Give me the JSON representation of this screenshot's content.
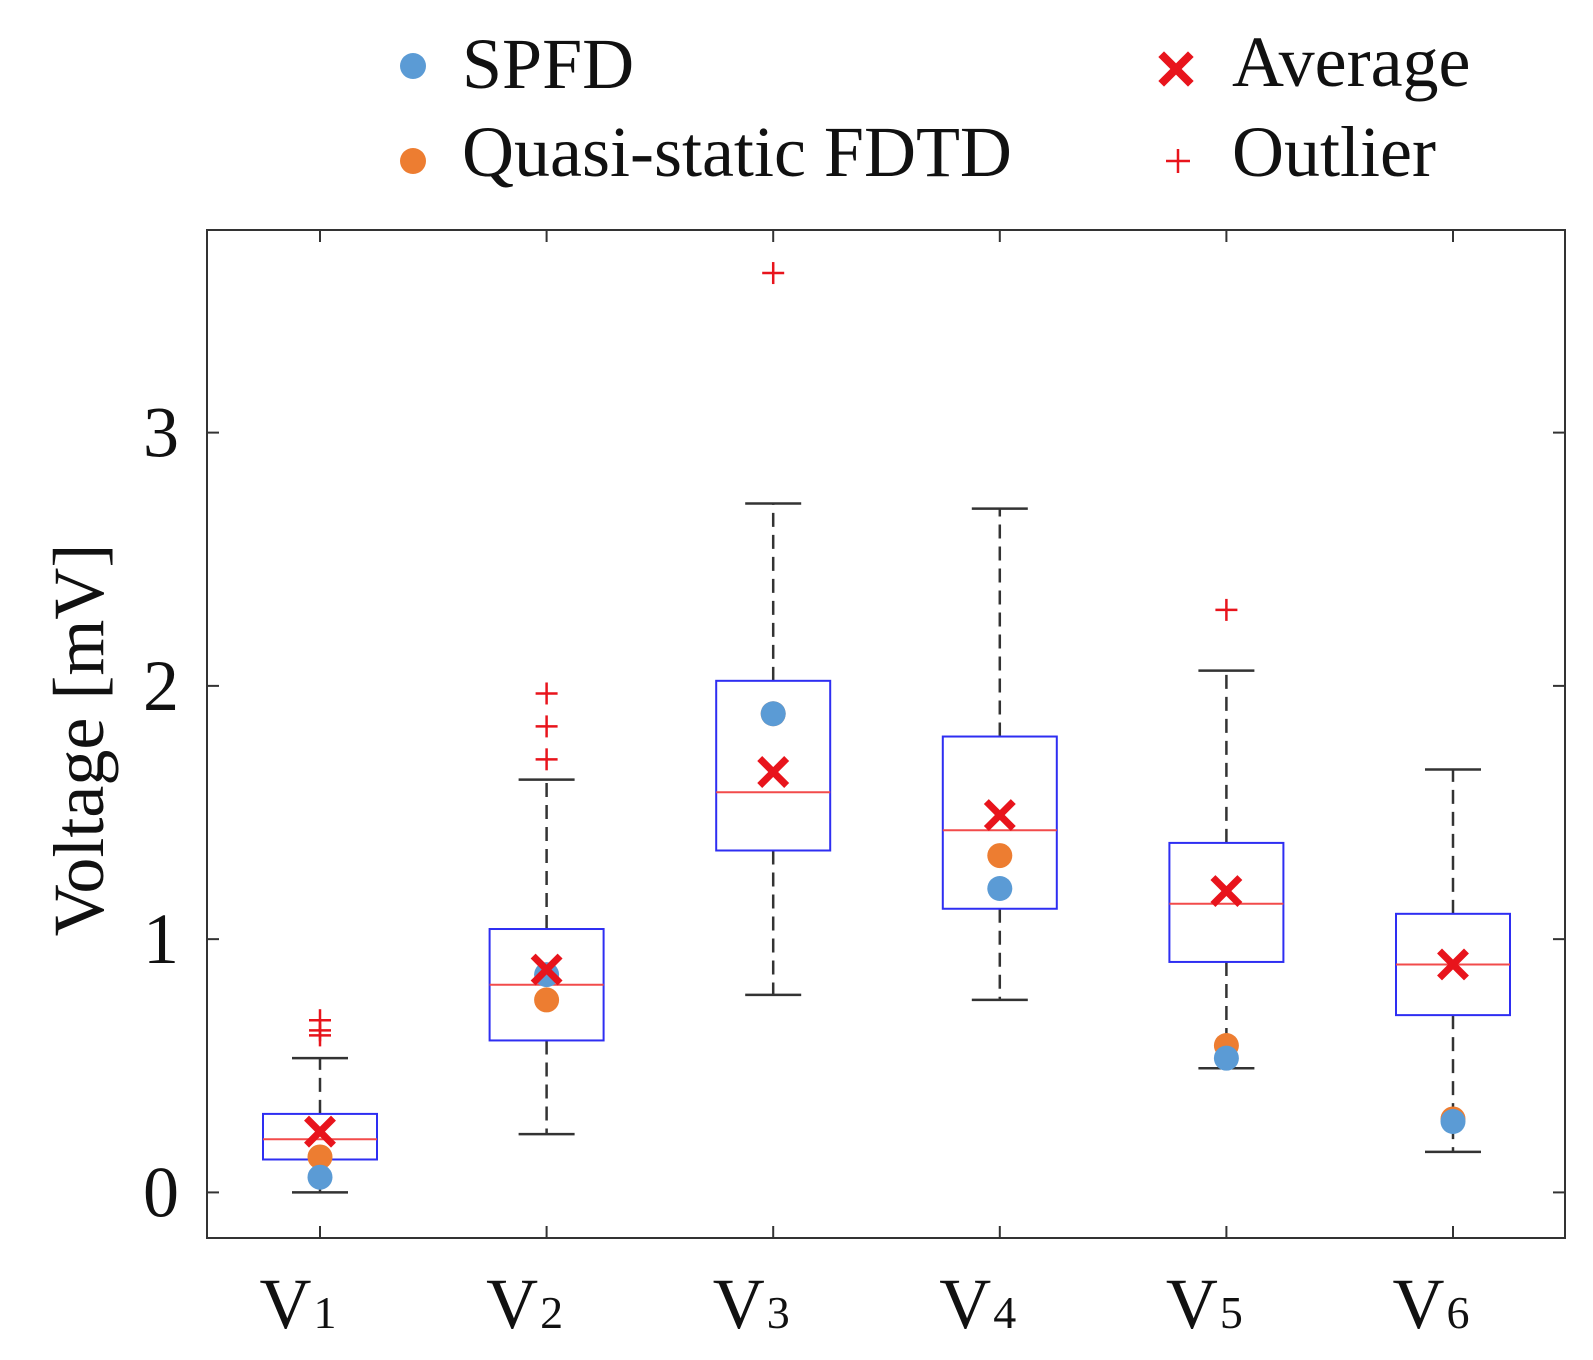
{
  "chart_data": {
    "type": "box",
    "ylabel": "Voltage [mV]",
    "ylim": [
      -0.18,
      3.8
    ],
    "yticks": [
      "0",
      "1",
      "2",
      "3"
    ],
    "categories": [
      {
        "base": "V",
        "sub": "1"
      },
      {
        "base": "V",
        "sub": "2"
      },
      {
        "base": "V",
        "sub": "3"
      },
      {
        "base": "V",
        "sub": "4"
      },
      {
        "base": "V",
        "sub": "5"
      },
      {
        "base": "V",
        "sub": "6"
      }
    ],
    "boxes": [
      {
        "q1": 0.13,
        "median": 0.21,
        "q3": 0.31,
        "whisker_low": 0.0,
        "whisker_high": 0.53,
        "mean": 0.24,
        "outliers": [
          0.62,
          0.64,
          0.68
        ]
      },
      {
        "q1": 0.6,
        "median": 0.82,
        "q3": 1.04,
        "whisker_low": 0.23,
        "whisker_high": 1.63,
        "mean": 0.88,
        "outliers": [
          1.71,
          1.84,
          1.97
        ]
      },
      {
        "q1": 1.35,
        "median": 1.58,
        "q3": 2.02,
        "whisker_low": 0.78,
        "whisker_high": 2.72,
        "mean": 1.66,
        "outliers": [
          3.63
        ]
      },
      {
        "q1": 1.12,
        "median": 1.43,
        "q3": 1.8,
        "whisker_low": 0.76,
        "whisker_high": 2.7,
        "mean": 1.49,
        "outliers": []
      },
      {
        "q1": 0.91,
        "median": 1.14,
        "q3": 1.38,
        "whisker_low": 0.49,
        "whisker_high": 2.06,
        "mean": 1.19,
        "outliers": [
          2.3
        ]
      },
      {
        "q1": 0.7,
        "median": 0.9,
        "q3": 1.1,
        "whisker_low": 0.16,
        "whisker_high": 1.67,
        "mean": 0.9,
        "outliers": []
      }
    ],
    "series": [
      {
        "name": "SPFD",
        "color": "#5b9bd5",
        "values": [
          0.06,
          0.86,
          1.89,
          1.2,
          0.53,
          0.28
        ]
      },
      {
        "name": "Quasi-static FDTD",
        "color": "#ed7d31",
        "values": [
          0.14,
          0.76,
          1.89,
          1.33,
          0.58,
          0.29
        ]
      }
    ],
    "legend": {
      "placement": "top",
      "items": [
        {
          "label": "SPFD",
          "marker": "dot",
          "color": "#5b9bd5"
        },
        {
          "label": "Quasi-static FDTD",
          "marker": "dot",
          "color": "#ed7d31"
        },
        {
          "label": "Average",
          "marker": "x",
          "color": "#e8141c"
        },
        {
          "label": "Outlier",
          "marker": "plus",
          "color": "#e8141c"
        }
      ]
    },
    "colors": {
      "box": "#2e2ef2",
      "median": "#f24b4b",
      "whisker": "#333333",
      "mean": "#e8141c",
      "outlier": "#e8141c",
      "axis": "#333333"
    }
  }
}
